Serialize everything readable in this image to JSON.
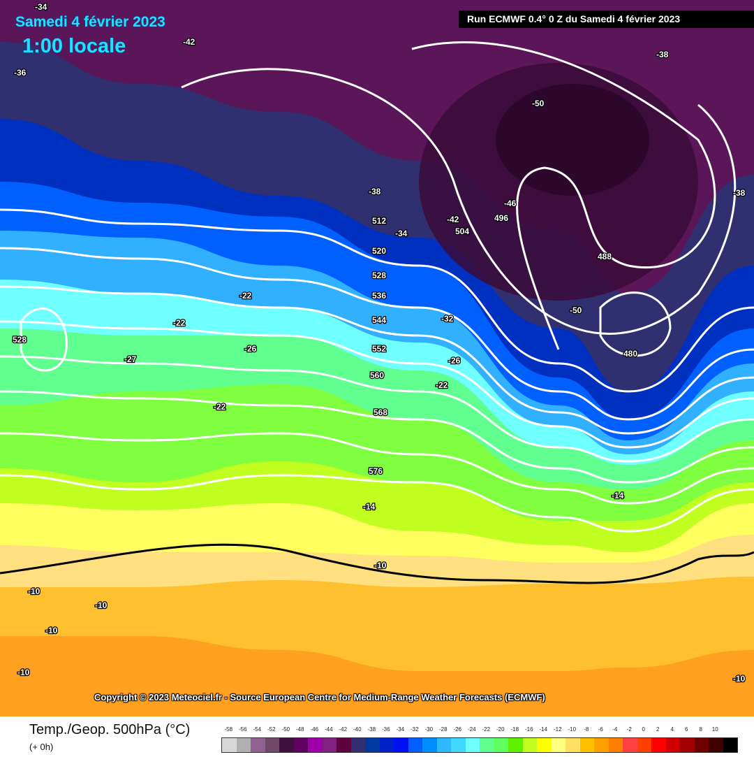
{
  "header": {
    "date": "Samedi 4 février 2023",
    "local_time": "1:00 locale",
    "run": "Run ECMWF 0.4° 0 Z du Samedi 4 février 2023"
  },
  "copyright": "Copyright © 2023 Meteociel.fr - Source European Centre for Medium-Range Weather Forecasts (ECMWF)",
  "legend": {
    "title": "Temp./Geop. 500hPa (°C)",
    "lead": "(+ 0h)",
    "ticks": [
      "-58",
      "-56",
      "-54",
      "-52",
      "-50",
      "-48",
      "-46",
      "-44",
      "-42",
      "-40",
      "-38",
      "-36",
      "-34",
      "-32",
      "-30",
      "-28",
      "-26",
      "-24",
      "-22",
      "-20",
      "-18",
      "-16",
      "-14",
      "-12",
      "-10",
      "-8",
      "-6",
      "-4",
      "-2",
      "0",
      "2",
      "4",
      "6",
      "8",
      "10"
    ],
    "colors": [
      "#d8d8d8",
      "#b0b0b0",
      "#906090",
      "#704868",
      "#401040",
      "#600060",
      "#a000a8",
      "#802080",
      "#600040",
      "#303070",
      "#0038a0",
      "#0020c8",
      "#0010f0",
      "#0060ff",
      "#0090ff",
      "#30b8ff",
      "#40d8ff",
      "#70ffff",
      "#60ff90",
      "#60ff60",
      "#60f000",
      "#c0ff20",
      "#ffff00",
      "#ffff80",
      "#ffe060",
      "#ffc000",
      "#ffa000",
      "#ff8000",
      "#ff4040",
      "#ff4000",
      "#ff0000",
      "#d00000",
      "#a00000",
      "#700000",
      "#400000",
      "#000000"
    ]
  },
  "map": {
    "geopotential_labels": [
      "512",
      "520",
      "528",
      "536",
      "544",
      "552",
      "560",
      "568",
      "576",
      "504",
      "496",
      "488",
      "480",
      "528"
    ],
    "temperature_labels": [
      "-34",
      "-36",
      "-42",
      "-38",
      "-34",
      "-42",
      "-46",
      "-50",
      "-50",
      "-38",
      "-22",
      "-22",
      "-26",
      "-27",
      "-22",
      "-26",
      "-22",
      "-14",
      "-14",
      "-10",
      "-10",
      "-10",
      "-10",
      "-10",
      "-10",
      "-32",
      "-38"
    ]
  }
}
